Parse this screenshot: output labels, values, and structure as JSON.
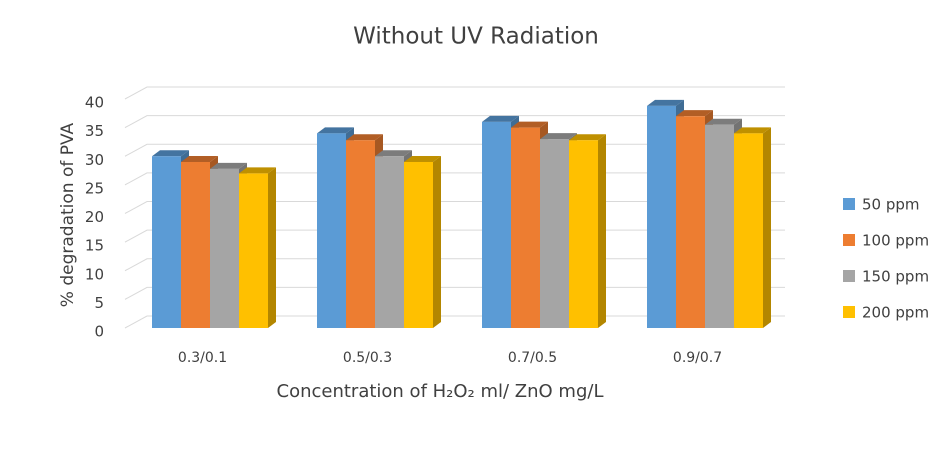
{
  "chart_data": {
    "type": "bar",
    "title": "Without UV Radiation",
    "x_label": "Concentration of H₂O₂ ml/ ZnO mg/L",
    "y_label": "% degradation of PVA",
    "categories": [
      "0.3/0.1",
      "0.5/0.3",
      "0.7/0.5",
      "0.9/0.7"
    ],
    "series": [
      {
        "name": "50 ppm",
        "color": "#5b9bd5",
        "values": [
          30,
          34,
          36,
          38.8
        ]
      },
      {
        "name": "100 ppm",
        "color": "#ed7d31",
        "values": [
          29,
          32.8,
          35,
          37
        ]
      },
      {
        "name": "150 ppm",
        "color": "#a5a5a5",
        "values": [
          27.8,
          30,
          33,
          35.5
        ]
      },
      {
        "name": "200 ppm",
        "color": "#ffc000",
        "values": [
          27,
          29,
          32.8,
          34
        ]
      }
    ],
    "ylim": [
      0,
      40
    ],
    "yticks": [
      0,
      5,
      10,
      15,
      20,
      25,
      30,
      35,
      40
    ],
    "grid": true,
    "legend": "right"
  }
}
